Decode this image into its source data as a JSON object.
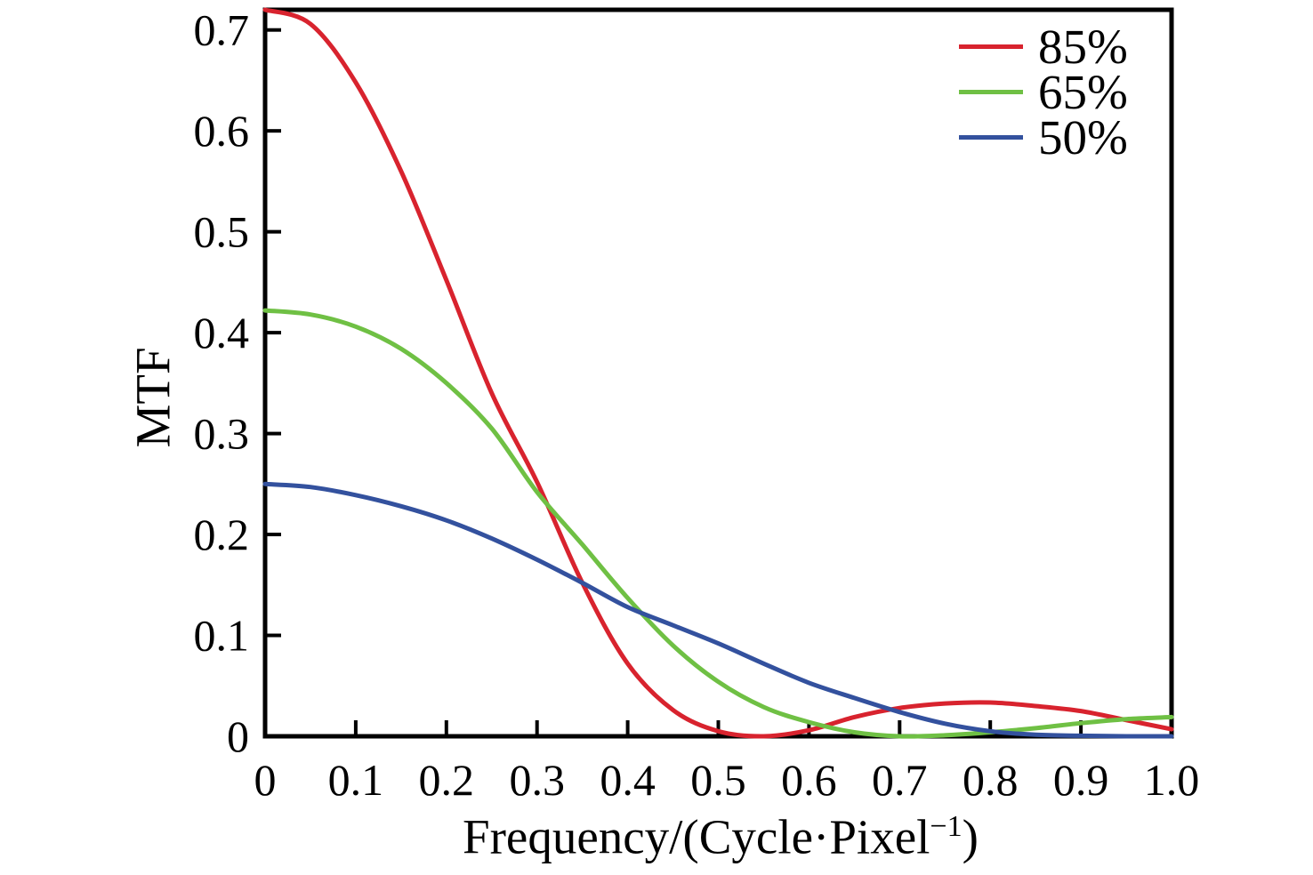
{
  "figure": {
    "background": "#ffffff",
    "axis_color": "#000000",
    "text_color": "#000000"
  },
  "chart_data": {
    "type": "line",
    "title": "",
    "xlabel": "Frequency/(Cycle·Pixel⁻¹)",
    "xlabel_parts": {
      "pre": "Frequency/(Cycle·Pixel",
      "sup": "−1",
      "post": ")"
    },
    "ylabel": "MTF",
    "xlim": [
      0,
      1.0
    ],
    "ylim": [
      0,
      0.72
    ],
    "grid": false,
    "legend_position": "top-right-inside",
    "xticks": [
      0,
      0.1,
      0.2,
      0.3,
      0.4,
      0.5,
      0.6,
      0.7,
      0.8,
      0.9,
      1.0
    ],
    "xtick_labels": [
      "0",
      "0.1",
      "0.2",
      "0.3",
      "0.4",
      "0.5",
      "0.6",
      "0.7",
      "0.8",
      "0.9",
      "1.0"
    ],
    "yticks": [
      0,
      0.1,
      0.2,
      0.3,
      0.4,
      0.5,
      0.6,
      0.7
    ],
    "ytick_labels": [
      "0",
      "0.1",
      "0.2",
      "0.3",
      "0.4",
      "0.5",
      "0.6",
      "0.7"
    ],
    "x": [
      0,
      0.05,
      0.1,
      0.15,
      0.2,
      0.25,
      0.3,
      0.35,
      0.4,
      0.45,
      0.5,
      0.55,
      0.6,
      0.65,
      0.7,
      0.75,
      0.8,
      0.85,
      0.9,
      0.95,
      1.0
    ],
    "series": [
      {
        "name": "85%",
        "color": "#d8232e",
        "values": [
          0.72,
          0.706,
          0.648,
          0.56,
          0.452,
          0.34,
          0.252,
          0.152,
          0.072,
          0.026,
          0.005,
          0.0,
          0.006,
          0.019,
          0.028,
          0.0325,
          0.0335,
          0.03,
          0.025,
          0.016,
          0.007
        ]
      },
      {
        "name": "65%",
        "color": "#6fc044",
        "values": [
          0.422,
          0.418,
          0.406,
          0.384,
          0.35,
          0.305,
          0.242,
          0.19,
          0.137,
          0.09,
          0.054,
          0.029,
          0.014,
          0.004,
          0.0,
          0.001,
          0.004,
          0.008,
          0.013,
          0.017,
          0.019
        ]
      },
      {
        "name": "50%",
        "color": "#33519e",
        "values": [
          0.25,
          0.247,
          0.239,
          0.228,
          0.214,
          0.196,
          0.175,
          0.152,
          0.128,
          0.11,
          0.092,
          0.072,
          0.053,
          0.038,
          0.024,
          0.0125,
          0.005,
          0.0015,
          0.0005,
          0.0,
          0.0
        ]
      }
    ]
  }
}
